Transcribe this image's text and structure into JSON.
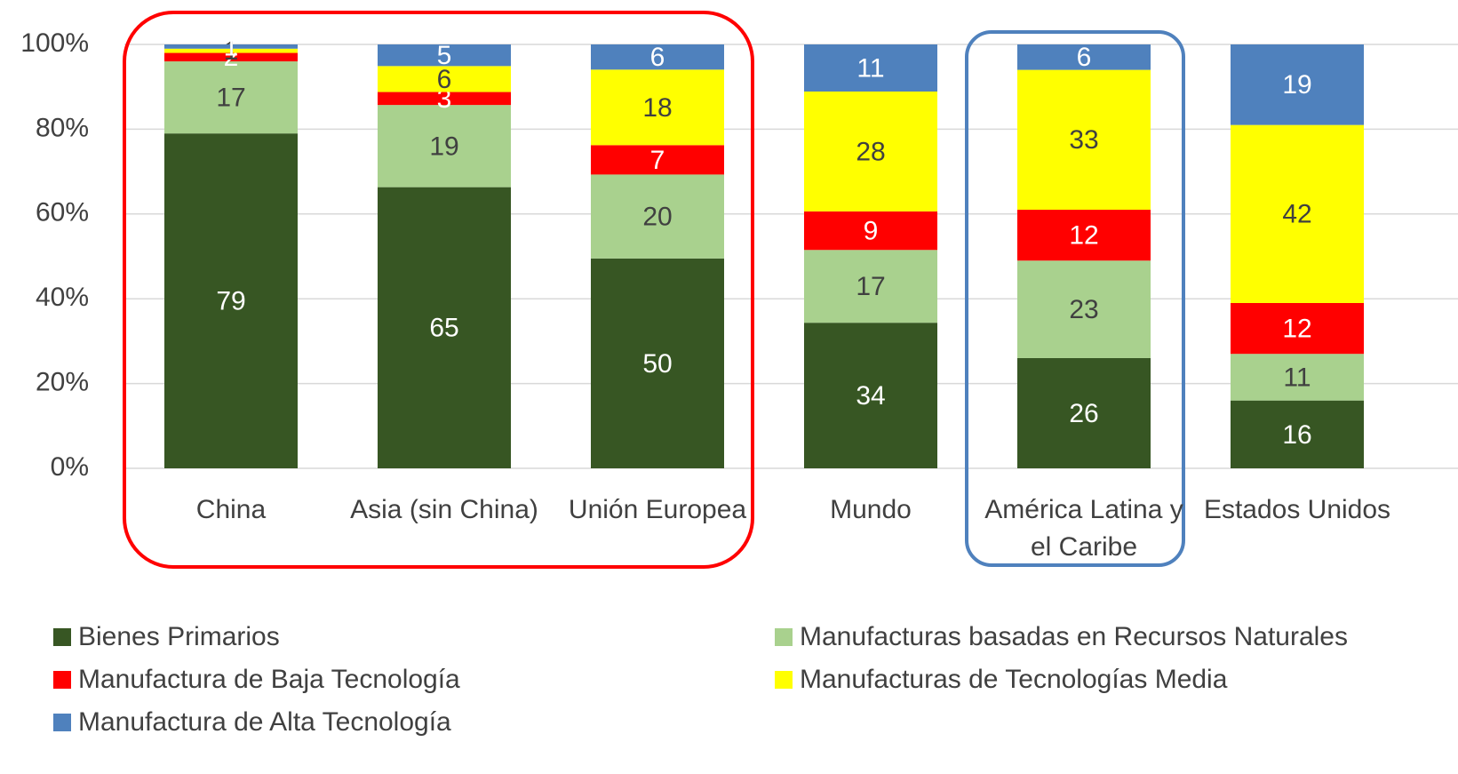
{
  "chart_data": {
    "type": "stacked_percent_bar",
    "categories": [
      "China",
      "Asia (sin China)",
      "Unión Europea",
      "Mundo",
      "América Latina y el Caribe",
      "Estados Unidos"
    ],
    "series": [
      {
        "name": "Bienes Primarios",
        "color": "#375623",
        "values": [
          79,
          65,
          50,
          34,
          26,
          16
        ]
      },
      {
        "name": "Manufacturas basadas en Recursos Naturales",
        "color": "#a9d18e",
        "values": [
          17,
          19,
          20,
          17,
          23,
          11
        ]
      },
      {
        "name": "Manufactura de Baja Tecnología",
        "color": "#ff0000",
        "values": [
          2,
          3,
          7,
          9,
          12,
          12
        ]
      },
      {
        "name": "Manufacturas de Tecnologías Media",
        "color": "#ffff00",
        "values": [
          1,
          6,
          18,
          28,
          33,
          42
        ]
      },
      {
        "name": "Manufactura de Alta Tecnología",
        "color": "#4f81bd",
        "values": [
          1,
          5,
          6,
          11,
          6,
          19
        ]
      }
    ],
    "ylim": [
      0,
      100
    ],
    "yticks": [
      {
        "value": 0,
        "label": "0%"
      },
      {
        "value": 20,
        "label": "20%"
      },
      {
        "value": 40,
        "label": "40%"
      },
      {
        "value": 60,
        "label": "60%"
      },
      {
        "value": 80,
        "label": "80%"
      },
      {
        "value": 100,
        "label": "100%"
      }
    ],
    "grid": true
  }
}
